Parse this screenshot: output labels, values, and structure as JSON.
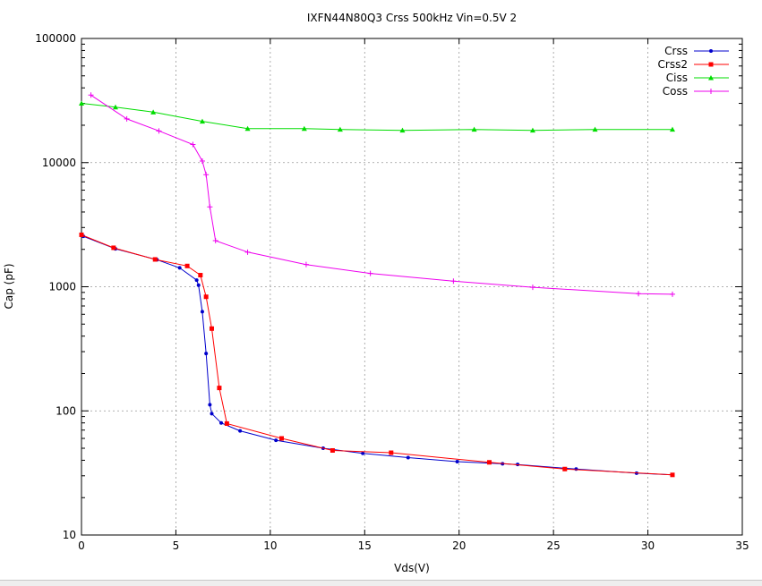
{
  "chart_data": {
    "type": "line",
    "title": "IXFN44N80Q3 Crss 500kHz Vin=0.5V 2",
    "xlabel": "Vds(V)",
    "ylabel": "Cap (pF)",
    "xlim": [
      0,
      35
    ],
    "ylim": [
      10,
      100000
    ],
    "yscale": "log",
    "xticks": [
      0,
      5,
      10,
      15,
      20,
      25,
      30,
      35
    ],
    "yticks": [
      10,
      100,
      1000,
      10000,
      100000
    ],
    "grid": true,
    "legend_position": "top-right",
    "series": [
      {
        "name": "Crss",
        "color": "#0000cc",
        "marker": "dot",
        "points": [
          [
            0.1,
            2550
          ],
          [
            1.8,
            2020
          ],
          [
            4,
            1650
          ],
          [
            5.2,
            1420
          ],
          [
            6.1,
            1130
          ],
          [
            6.2,
            1030
          ],
          [
            6.4,
            630
          ],
          [
            6.6,
            290
          ],
          [
            6.8,
            112
          ],
          [
            6.9,
            95
          ],
          [
            7.4,
            80
          ],
          [
            8.4,
            69
          ],
          [
            10.3,
            58
          ],
          [
            12.8,
            50
          ],
          [
            14.9,
            45.5
          ],
          [
            17.3,
            42
          ],
          [
            19.9,
            39
          ],
          [
            22.3,
            37.5
          ],
          [
            23.1,
            37
          ],
          [
            26.2,
            34
          ],
          [
            29.4,
            31.5
          ],
          [
            31.3,
            30.5
          ]
        ]
      },
      {
        "name": "Crss2",
        "color": "#ff0000",
        "marker": "square",
        "points": [
          [
            0,
            2620
          ],
          [
            1.7,
            2060
          ],
          [
            3.9,
            1660
          ],
          [
            5.6,
            1470
          ],
          [
            6.3,
            1240
          ],
          [
            6.6,
            830
          ],
          [
            6.9,
            460
          ],
          [
            7.3,
            153
          ],
          [
            7.7,
            79
          ],
          [
            10.6,
            60
          ],
          [
            13.3,
            48
          ],
          [
            16.4,
            46
          ],
          [
            21.6,
            38.5
          ],
          [
            25.6,
            34
          ],
          [
            31.3,
            30.5
          ]
        ]
      },
      {
        "name": "Ciss",
        "color": "#00dd00",
        "marker": "triangle",
        "points": [
          [
            0,
            30000
          ],
          [
            1.8,
            28000
          ],
          [
            3.8,
            25500
          ],
          [
            6.4,
            21500
          ],
          [
            8.8,
            18800
          ],
          [
            11.8,
            18800
          ],
          [
            13.7,
            18500
          ],
          [
            17,
            18200
          ],
          [
            20.8,
            18500
          ],
          [
            23.9,
            18200
          ],
          [
            27.2,
            18500
          ],
          [
            31.3,
            18500
          ]
        ]
      },
      {
        "name": "Coss",
        "color": "#ee00ee",
        "marker": "plus",
        "points": [
          [
            0.5,
            35000
          ],
          [
            2.4,
            22500
          ],
          [
            4.1,
            18000
          ],
          [
            5.9,
            14000
          ],
          [
            6.4,
            10300
          ],
          [
            6.6,
            8000
          ],
          [
            6.8,
            4400
          ],
          [
            7.1,
            2350
          ],
          [
            8.8,
            1900
          ],
          [
            11.9,
            1510
          ],
          [
            15.3,
            1280
          ],
          [
            19.7,
            1110
          ],
          [
            23.9,
            990
          ],
          [
            29.5,
            880
          ],
          [
            31.3,
            870
          ]
        ]
      }
    ]
  }
}
